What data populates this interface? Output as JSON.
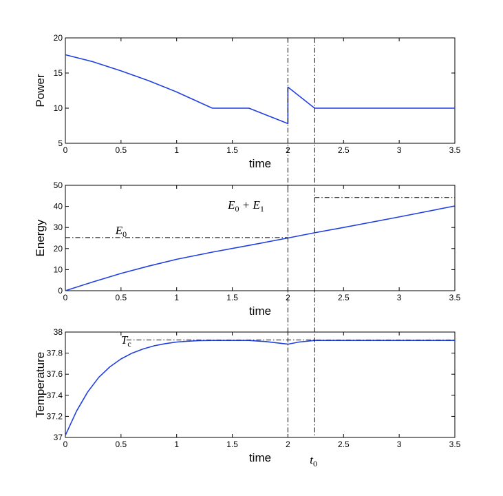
{
  "colors": {
    "series": "#1f3fe0",
    "annotation": "#000000",
    "frame": "#000000"
  },
  "chart_data": [
    {
      "type": "line",
      "ylabel": "Power",
      "xlabel": "time",
      "xlim": [
        0,
        3.5
      ],
      "ylim": [
        5,
        20
      ],
      "xticks": [
        "0",
        "0.5",
        "1",
        "1.5",
        "2",
        "2.5",
        "3",
        "3.5"
      ],
      "yticks": [
        "5",
        "10",
        "15",
        "20"
      ],
      "grid": false,
      "series": [
        {
          "x": [
            0,
            0.25,
            0.5,
            0.75,
            1.0,
            1.32,
            1.65,
            2.0,
            2.0,
            2.24,
            2.5,
            3.0,
            3.5
          ],
          "y": [
            17.6,
            16.6,
            15.3,
            13.9,
            12.3,
            10.0,
            10.0,
            7.8,
            13.0,
            10.0,
            10.0,
            10.0,
            10.0
          ]
        }
      ],
      "hlines": [],
      "annotations": []
    },
    {
      "type": "line",
      "ylabel": "Energy",
      "xlabel": "time",
      "xlim": [
        0,
        3.5
      ],
      "ylim": [
        0,
        50
      ],
      "xticks": [
        "0",
        "0.5",
        "1",
        "1.5",
        "2",
        "2.5",
        "3",
        "3.5"
      ],
      "yticks": [
        "0",
        "10",
        "20",
        "30",
        "40",
        "50"
      ],
      "grid": false,
      "series": [
        {
          "x": [
            0,
            0.25,
            0.5,
            0.75,
            1.0,
            1.32,
            1.65,
            2.0,
            2.24,
            2.5,
            3.0,
            3.5
          ],
          "y": [
            0,
            4.2,
            8.2,
            11.7,
            14.9,
            18.3,
            21.5,
            25.0,
            27.5,
            30.0,
            35.0,
            40.2
          ]
        }
      ],
      "hlines": [
        {
          "y": 25.2,
          "x_from": 0,
          "x_to": 2.0
        },
        {
          "y": 44.2,
          "x_from": 2.24,
          "x_to": 3.5
        }
      ],
      "annotations": [
        {
          "sym": "E",
          "sub": "0",
          "x": 0.45,
          "y": 28.4
        },
        {
          "sym": "E",
          "sub": "0",
          "op": "+",
          "sym2": "E",
          "sub2": "1",
          "x": 1.46,
          "y": 40.5
        }
      ]
    },
    {
      "type": "line",
      "ylabel": "Temperature",
      "xlabel": "time",
      "xlim": [
        0,
        3.5
      ],
      "ylim": [
        37,
        38
      ],
      "xticks": [
        "0",
        "0.5",
        "1",
        "1.5",
        "2",
        "2.5",
        "3",
        "3.5"
      ],
      "yticks": [
        "37",
        "37.2",
        "37.4",
        "37.6",
        "37.8",
        "38"
      ],
      "grid": false,
      "series": [
        {
          "x": [
            0,
            0.1,
            0.2,
            0.3,
            0.4,
            0.5,
            0.6,
            0.7,
            0.8,
            0.9,
            1.0,
            1.1,
            1.2,
            1.32,
            1.5,
            1.65,
            1.8,
            2.0,
            2.1,
            2.24,
            2.5,
            3.0,
            3.5
          ],
          "y": [
            37.02,
            37.25,
            37.43,
            37.57,
            37.67,
            37.745,
            37.8,
            37.84,
            37.87,
            37.89,
            37.905,
            37.913,
            37.918,
            37.92,
            37.92,
            37.92,
            37.91,
            37.885,
            37.905,
            37.92,
            37.92,
            37.92,
            37.92
          ]
        }
      ],
      "hlines": [
        {
          "y": 37.925,
          "x_from": 0.55,
          "x_to": 3.5
        }
      ],
      "annotations": [
        {
          "sym": "T",
          "sub": "c",
          "x": 0.5,
          "y": 37.92
        }
      ]
    }
  ],
  "vlines": [
    {
      "x": 2.0
    },
    {
      "x": 2.24,
      "sym": "t",
      "sub": "0"
    }
  ]
}
